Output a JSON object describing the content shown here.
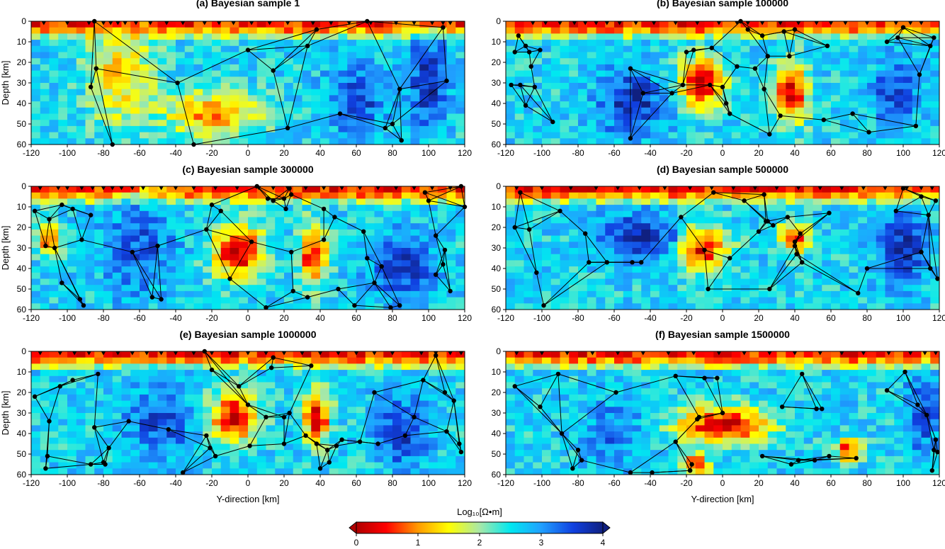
{
  "figure": {
    "colorbar_label": "Log₁₀[Ω•m]",
    "colorbar_ticks": [
      "0",
      "1",
      "2",
      "3",
      "4"
    ]
  },
  "chart_data": [
    {
      "type": "heatmap",
      "title": "(a) Bayesian sample 1",
      "xlabel": "",
      "ylabel": "Depth [km]",
      "xlim": [
        -120,
        120
      ],
      "ylim": [
        60,
        0
      ],
      "xticks": [
        "-120",
        "-100",
        "-80",
        "-60",
        "-40",
        "-20",
        "0",
        "20",
        "40",
        "60",
        "80",
        "100",
        "120"
      ],
      "yticks": [
        "0",
        "10",
        "20",
        "30",
        "40",
        "50",
        "60"
      ],
      "stations_y_km": [
        -113,
        -100,
        -88,
        -80,
        -76,
        -72,
        -68,
        -62,
        -54,
        -45,
        -36,
        -24,
        -16,
        -8,
        2,
        12,
        22,
        36,
        46,
        56,
        68,
        82,
        92,
        102,
        108,
        112
      ],
      "nodes": [
        [
          -85,
          0
        ],
        [
          -84,
          23
        ],
        [
          -87,
          32
        ],
        [
          -39,
          30
        ],
        [
          -30,
          60
        ],
        [
          0,
          14
        ],
        [
          14,
          24
        ],
        [
          33,
          12
        ],
        [
          38,
          4
        ],
        [
          51,
          45
        ],
        [
          22,
          52
        ],
        [
          76,
          52
        ],
        [
          80,
          50
        ],
        [
          84,
          33
        ],
        [
          85,
          58
        ],
        [
          110,
          29
        ],
        [
          108,
          3
        ],
        [
          66,
          0
        ],
        [
          -75,
          60
        ]
      ]
    },
    {
      "type": "heatmap",
      "title": "(b) Bayesian sample 100000",
      "xlabel": "",
      "ylabel": "",
      "xlim": [
        -120,
        120
      ],
      "ylim": [
        60,
        0
      ],
      "xticks": [
        "-120",
        "-100",
        "-80",
        "-60",
        "-40",
        "-20",
        "0",
        "20",
        "40",
        "60",
        "80",
        "100",
        "120"
      ],
      "yticks": [
        "0",
        "10",
        "20",
        "30",
        "40",
        "50",
        "60"
      ],
      "stations_y_km": [
        -105,
        -98,
        -90,
        -82,
        -76,
        -70,
        -64,
        -57,
        -48,
        -38,
        -26,
        -14,
        -2,
        8,
        14,
        22,
        32,
        42,
        52,
        60,
        68,
        80,
        96,
        104,
        110
      ],
      "nodes": [
        [
          -113,
          7
        ],
        [
          -109,
          12
        ],
        [
          -115,
          15
        ],
        [
          -117,
          31
        ],
        [
          -112,
          31
        ],
        [
          -107,
          15
        ],
        [
          -104,
          32
        ],
        [
          -106,
          22
        ],
        [
          -101,
          14
        ],
        [
          -109,
          41
        ],
        [
          -94,
          49
        ],
        [
          -51,
          23
        ],
        [
          -44,
          35
        ],
        [
          -51,
          57
        ],
        [
          -28,
          35
        ],
        [
          -22,
          31
        ],
        [
          -20,
          15
        ],
        [
          -16,
          14
        ],
        [
          -6,
          13
        ],
        [
          -7,
          31
        ],
        [
          0,
          32
        ],
        [
          2,
          40
        ],
        [
          4,
          45
        ],
        [
          8,
          22
        ],
        [
          10,
          0
        ],
        [
          14,
          4
        ],
        [
          18,
          23
        ],
        [
          22,
          7
        ],
        [
          23,
          33
        ],
        [
          25,
          17
        ],
        [
          26,
          55
        ],
        [
          32,
          46
        ],
        [
          34,
          5
        ],
        [
          37,
          17
        ],
        [
          40,
          4
        ],
        [
          56,
          48
        ],
        [
          58,
          12
        ],
        [
          72,
          45
        ],
        [
          81,
          54
        ],
        [
          91,
          10
        ],
        [
          97,
          8
        ],
        [
          100,
          3
        ],
        [
          107,
          51
        ],
        [
          109,
          26
        ],
        [
          115,
          12
        ],
        [
          117,
          8
        ]
      ]
    },
    {
      "type": "heatmap",
      "title": "(c) Bayesian sample 300000",
      "xlabel": "",
      "ylabel": "Depth [km]",
      "xlim": [
        -120,
        120
      ],
      "ylim": [
        60,
        0
      ],
      "xticks": [
        "-120",
        "-100",
        "-80",
        "-60",
        "-40",
        "-20",
        "0",
        "20",
        "40",
        "60",
        "80",
        "100",
        "120"
      ],
      "yticks": [
        "0",
        "10",
        "20",
        "30",
        "40",
        "50",
        "60"
      ],
      "stations_y_km": [
        -115,
        -105,
        -100,
        -92,
        -86,
        -80,
        -75,
        -70,
        -64,
        -58,
        -48,
        -40,
        -30,
        -18,
        -6,
        6,
        14,
        22,
        32,
        42,
        52,
        62,
        72,
        82,
        92,
        102,
        112
      ],
      "nodes": [
        [
          -118,
          12
        ],
        [
          -110,
          16
        ],
        [
          -103,
          9
        ],
        [
          -97,
          11
        ],
        [
          -107,
          30
        ],
        [
          -92,
          26
        ],
        [
          -87,
          14
        ],
        [
          -93,
          55
        ],
        [
          -91,
          58
        ],
        [
          -103,
          47
        ],
        [
          -112,
          29
        ],
        [
          -64,
          32
        ],
        [
          -50,
          29
        ],
        [
          -53,
          54
        ],
        [
          -48,
          55
        ],
        [
          -23,
          21
        ],
        [
          -20,
          9
        ],
        [
          -15,
          12
        ],
        [
          -10,
          45
        ],
        [
          2,
          27
        ],
        [
          5,
          0
        ],
        [
          11,
          6
        ],
        [
          10,
          59
        ],
        [
          14,
          7
        ],
        [
          20,
          6
        ],
        [
          21,
          11
        ],
        [
          23,
          1
        ],
        [
          24,
          4
        ],
        [
          24,
          32
        ],
        [
          25,
          51
        ],
        [
          33,
          54
        ],
        [
          42,
          26
        ],
        [
          42,
          11
        ],
        [
          48,
          15
        ],
        [
          50,
          50
        ],
        [
          59,
          58
        ],
        [
          64,
          22
        ],
        [
          66,
          35
        ],
        [
          70,
          47
        ],
        [
          74,
          39
        ],
        [
          79,
          59
        ],
        [
          84,
          58
        ],
        [
          98,
          3
        ],
        [
          100,
          7
        ],
        [
          104,
          24
        ],
        [
          104,
          43
        ],
        [
          108,
          38
        ],
        [
          109,
          31
        ],
        [
          112,
          51
        ],
        [
          118,
          0
        ],
        [
          120,
          10
        ]
      ]
    },
    {
      "type": "heatmap",
      "title": "(d) Bayesian sample 500000",
      "xlabel": "",
      "ylabel": "",
      "xlim": [
        -120,
        120
      ],
      "ylim": [
        60,
        0
      ],
      "xticks": [
        "-120",
        "-100",
        "-80",
        "-60",
        "-40",
        "-20",
        "0",
        "20",
        "40",
        "60",
        "80",
        "100",
        "120"
      ],
      "yticks": [
        "0",
        "10",
        "20",
        "30",
        "40",
        "50",
        "60"
      ],
      "stations_y_km": [
        -114,
        -100,
        -84,
        -70,
        -58,
        -46,
        -32,
        -18,
        -6,
        6,
        18,
        30,
        42,
        54,
        66,
        78,
        90,
        102,
        110,
        116
      ],
      "nodes": [
        [
          -112,
          3
        ],
        [
          -115,
          20
        ],
        [
          -107,
          21
        ],
        [
          -99,
          58
        ],
        [
          -103,
          42
        ],
        [
          -90,
          12
        ],
        [
          -76,
          23
        ],
        [
          -74,
          37
        ],
        [
          -64,
          37
        ],
        [
          -50,
          37
        ],
        [
          -45,
          37
        ],
        [
          -23,
          15
        ],
        [
          -10,
          31
        ],
        [
          -5,
          3
        ],
        [
          -8,
          50
        ],
        [
          4,
          35
        ],
        [
          12,
          7
        ],
        [
          20,
          22
        ],
        [
          24,
          17
        ],
        [
          28,
          19
        ],
        [
          36,
          15
        ],
        [
          40,
          27
        ],
        [
          43,
          23
        ],
        [
          41,
          33
        ],
        [
          44,
          37
        ],
        [
          25,
          17
        ],
        [
          23,
          4
        ],
        [
          26,
          50
        ],
        [
          40,
          29
        ],
        [
          59,
          13
        ],
        [
          75,
          52
        ],
        [
          80,
          40
        ],
        [
          96,
          12
        ],
        [
          100,
          1
        ],
        [
          110,
          32
        ],
        [
          110,
          5
        ],
        [
          114,
          14
        ],
        [
          118,
          7
        ],
        [
          115,
          40
        ],
        [
          119,
          45
        ]
      ]
    },
    {
      "type": "heatmap",
      "title": "(e) Bayesian sample 1000000",
      "xlabel": "Y-direction [km]",
      "ylabel": "Depth [km]",
      "xlim": [
        -120,
        120
      ],
      "ylim": [
        60,
        0
      ],
      "xticks": [
        "-120",
        "-100",
        "-80",
        "-60",
        "-40",
        "-20",
        "0",
        "20",
        "40",
        "60",
        "80",
        "100",
        "120"
      ],
      "yticks": [
        "0",
        "10",
        "20",
        "30",
        "40",
        "50",
        "60"
      ],
      "stations_y_km": [
        -115,
        -104,
        -96,
        -88,
        -80,
        -72,
        -64,
        -56,
        -48,
        -40,
        -30,
        -20,
        -10,
        0,
        10,
        20,
        30,
        40,
        50,
        60,
        70,
        80,
        96,
        104,
        112,
        118
      ],
      "nodes": [
        [
          -118,
          22
        ],
        [
          -110,
          34
        ],
        [
          -104,
          17
        ],
        [
          -111,
          51
        ],
        [
          -112,
          57
        ],
        [
          -97,
          14
        ],
        [
          -85,
          37
        ],
        [
          -83,
          11
        ],
        [
          -87,
          55
        ],
        [
          -80,
          54
        ],
        [
          -79,
          55
        ],
        [
          -77,
          47
        ],
        [
          -66,
          34
        ],
        [
          -44,
          38
        ],
        [
          -36,
          59
        ],
        [
          -24,
          0
        ],
        [
          -23,
          41
        ],
        [
          -21,
          47
        ],
        [
          -18,
          51
        ],
        [
          -5,
          17
        ],
        [
          0,
          26
        ],
        [
          1,
          46
        ],
        [
          -20,
          9
        ],
        [
          10,
          32
        ],
        [
          13,
          8
        ],
        [
          14,
          3
        ],
        [
          20,
          32
        ],
        [
          20,
          45
        ],
        [
          23,
          30
        ],
        [
          35,
          7
        ],
        [
          32,
          41
        ],
        [
          38,
          45
        ],
        [
          44,
          48
        ],
        [
          40,
          57
        ],
        [
          45,
          54
        ],
        [
          49,
          46
        ],
        [
          52,
          43
        ],
        [
          62,
          44
        ],
        [
          70,
          20
        ],
        [
          72,
          45
        ],
        [
          87,
          41
        ],
        [
          92,
          32
        ],
        [
          97,
          14
        ],
        [
          104,
          2
        ],
        [
          109,
          20
        ],
        [
          110,
          39
        ],
        [
          114,
          24
        ],
        [
          117,
          45
        ],
        [
          118,
          49
        ]
      ]
    },
    {
      "type": "heatmap",
      "title": "(f) Bayesian sample 1500000",
      "xlabel": "Y-direction [km]",
      "ylabel": "",
      "xlim": [
        -120,
        120
      ],
      "ylim": [
        60,
        0
      ],
      "xticks": [
        "-120",
        "-100",
        "-80",
        "-60",
        "-40",
        "-20",
        "0",
        "20",
        "40",
        "60",
        "80",
        "100",
        "120"
      ],
      "yticks": [
        "0",
        "10",
        "20",
        "30",
        "40",
        "50",
        "60"
      ],
      "stations_y_km": [
        -114,
        -100,
        -86,
        -72,
        -58,
        -44,
        -30,
        -16,
        -2,
        12,
        26,
        40,
        54,
        66,
        78,
        92,
        104,
        112,
        118
      ],
      "nodes": [
        [
          -115,
          17
        ],
        [
          -101,
          27
        ],
        [
          -91,
          11
        ],
        [
          -89,
          40
        ],
        [
          -83,
          57
        ],
        [
          -80,
          48
        ],
        [
          -78,
          53
        ],
        [
          -59,
          20
        ],
        [
          -51,
          59
        ],
        [
          -26,
          44
        ],
        [
          -26,
          12
        ],
        [
          -10,
          13
        ],
        [
          -14,
          33
        ],
        [
          -13,
          32
        ],
        [
          -18,
          58
        ],
        [
          -17,
          55
        ],
        [
          -39,
          59
        ],
        [
          -18,
          58
        ],
        [
          -3,
          13
        ],
        [
          0,
          30
        ],
        [
          22,
          51
        ],
        [
          33,
          27
        ],
        [
          38,
          55
        ],
        [
          42,
          53
        ],
        [
          44,
          11
        ],
        [
          51,
          53
        ],
        [
          52,
          28
        ],
        [
          55,
          28
        ],
        [
          59,
          51
        ],
        [
          74,
          52
        ],
        [
          91,
          19
        ],
        [
          101,
          10
        ],
        [
          108,
          26
        ],
        [
          113,
          31
        ],
        [
          118,
          43
        ],
        [
          117,
          48
        ],
        [
          119,
          49
        ],
        [
          116,
          58
        ]
      ]
    }
  ]
}
